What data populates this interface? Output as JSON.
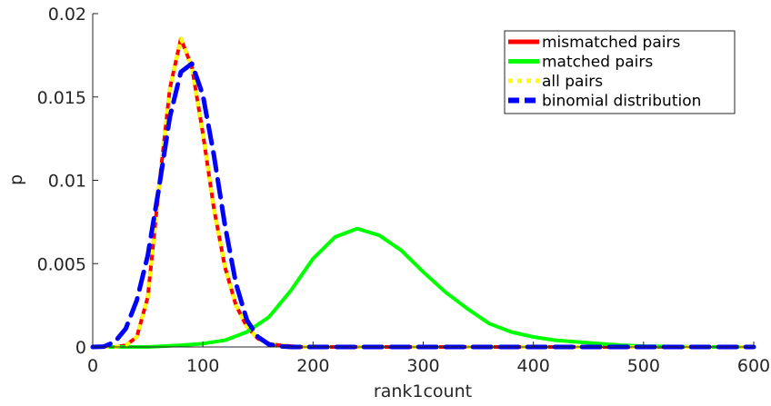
{
  "chart_data": {
    "type": "line",
    "xlabel": "rank1count",
    "ylabel": "p",
    "xlim": [
      0,
      600
    ],
    "ylim": [
      0,
      0.02
    ],
    "x_ticks": [
      0,
      100,
      200,
      300,
      400,
      500,
      600
    ],
    "x_tick_labels": [
      "0",
      "100",
      "200",
      "300",
      "400",
      "500",
      "600"
    ],
    "y_ticks": [
      0,
      0.005,
      0.01,
      0.015,
      0.02
    ],
    "y_tick_labels": [
      "0",
      "0.005",
      "0.01",
      "0.015",
      "0.02"
    ],
    "grid": false,
    "legend_position": "top-right",
    "series": [
      {
        "name": "mismatched pairs",
        "color": "#ff0000",
        "style": "solid",
        "x": [
          0,
          20,
          30,
          40,
          50,
          60,
          70,
          80,
          90,
          100,
          110,
          120,
          130,
          140,
          150,
          160,
          170,
          180,
          190,
          200,
          220,
          250,
          300,
          400,
          500,
          600
        ],
        "y": [
          0,
          0,
          0.0001,
          0.0006,
          0.003,
          0.0095,
          0.0155,
          0.0185,
          0.0168,
          0.0128,
          0.0083,
          0.0048,
          0.0025,
          0.0012,
          0.0005,
          0.0002,
          0.0001,
          5e-05,
          0,
          0,
          0,
          0,
          0,
          0,
          0,
          0
        ]
      },
      {
        "name": "matched pairs",
        "color": "#00ff00",
        "style": "solid",
        "x": [
          0,
          50,
          80,
          100,
          120,
          140,
          160,
          180,
          200,
          220,
          240,
          260,
          280,
          300,
          320,
          340,
          360,
          380,
          400,
          420,
          440,
          460,
          480,
          500,
          550,
          600
        ],
        "y": [
          0,
          0,
          0.0001,
          0.0002,
          0.0004,
          0.0009,
          0.0018,
          0.0034,
          0.0053,
          0.0066,
          0.0071,
          0.0067,
          0.0058,
          0.0045,
          0.0033,
          0.0023,
          0.0014,
          0.0009,
          0.0006,
          0.0004,
          0.0003,
          0.0002,
          0.0001,
          5e-05,
          0,
          0
        ]
      },
      {
        "name": "all pairs",
        "color": "#ffff00",
        "style": "dotted",
        "x": [
          0,
          20,
          30,
          40,
          50,
          60,
          70,
          80,
          90,
          100,
          110,
          120,
          130,
          140,
          150,
          160,
          170,
          180,
          190,
          200,
          220,
          250,
          300,
          400,
          500,
          600
        ],
        "y": [
          0,
          0,
          0.0001,
          0.0006,
          0.003,
          0.0095,
          0.0155,
          0.0185,
          0.0168,
          0.0128,
          0.0083,
          0.0048,
          0.0025,
          0.0012,
          0.0005,
          0.0002,
          0.0001,
          5e-05,
          0,
          0,
          0,
          0,
          0,
          0,
          0,
          0
        ]
      },
      {
        "name": "binomial distribution",
        "color": "#0000ff",
        "style": "dashed",
        "x": [
          0,
          10,
          20,
          30,
          40,
          50,
          60,
          70,
          80,
          90,
          100,
          110,
          120,
          130,
          140,
          150,
          160,
          170,
          180,
          200,
          250,
          300,
          400,
          500,
          600
        ],
        "y": [
          0,
          2e-05,
          0.0003,
          0.0011,
          0.0028,
          0.0055,
          0.0095,
          0.0138,
          0.0165,
          0.017,
          0.0151,
          0.0115,
          0.0073,
          0.0038,
          0.0016,
          0.0006,
          0.00015,
          4e-05,
          0,
          0,
          0,
          0,
          0,
          0,
          0
        ]
      }
    ]
  }
}
